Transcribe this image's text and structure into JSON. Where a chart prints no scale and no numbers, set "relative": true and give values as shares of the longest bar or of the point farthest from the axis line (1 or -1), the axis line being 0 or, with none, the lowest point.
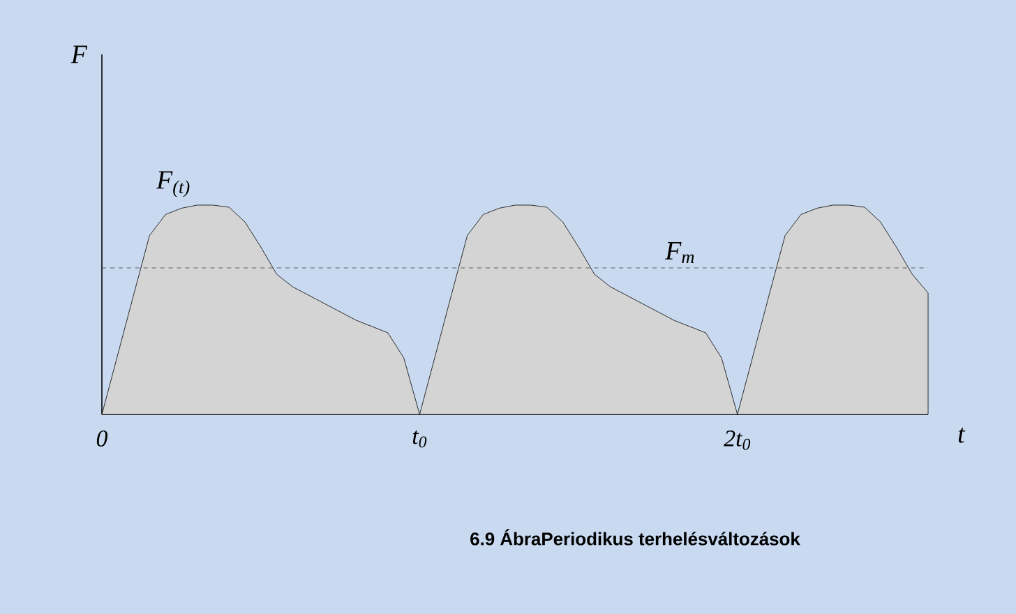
{
  "chart_data": {
    "type": "area",
    "relative": true,
    "title": "6.9 ÁbraPeriodikus terhelésváltozások",
    "xlabel": "t",
    "categories": [
      "0",
      null,
      null,
      null,
      null,
      null,
      null,
      null,
      null,
      null,
      null,
      null,
      null,
      null,
      null,
      null,
      null,
      null,
      null,
      null,
      "t$_{0}$",
      null,
      null,
      null,
      null,
      null,
      null,
      null,
      null,
      null,
      null,
      null,
      null,
      null,
      null,
      null,
      null,
      null,
      null,
      null,
      "2t$_{0}$",
      null,
      null,
      null,
      null,
      null,
      null,
      null,
      null,
      null,
      null,
      null,
      null
    ],
    "series": [
      {
        "color": "#d4d4d4",
        "values": [
          0,
          0.286,
          0.572,
          0.855,
          0.955,
          0.985,
          1.0,
          1.0,
          0.99,
          0.92,
          0.8,
          0.67,
          0.61,
          0.57,
          0.53,
          0.49,
          0.45,
          0.42,
          0.39,
          0.27,
          0,
          0.286,
          0.572,
          0.855,
          0.955,
          0.985,
          1.0,
          1.0,
          0.99,
          0.92,
          0.8,
          0.67,
          0.61,
          0.57,
          0.53,
          0.49,
          0.45,
          0.42,
          0.39,
          0.27,
          0,
          0.286,
          0.572,
          0.855,
          0.955,
          0.985,
          1.0,
          1.0,
          0.99,
          0.92,
          0.8,
          0.67,
          0.58
        ]
      }
    ],
    "ref_lines": [
      {
        "axis": "y",
        "value": 0.7,
        "label": "F$_{m}$",
        "line_style": "dashed",
        "color": "#404040"
      }
    ],
    "annotations": [
      "F$_{(t)}$",
      "F"
    ]
  }
}
